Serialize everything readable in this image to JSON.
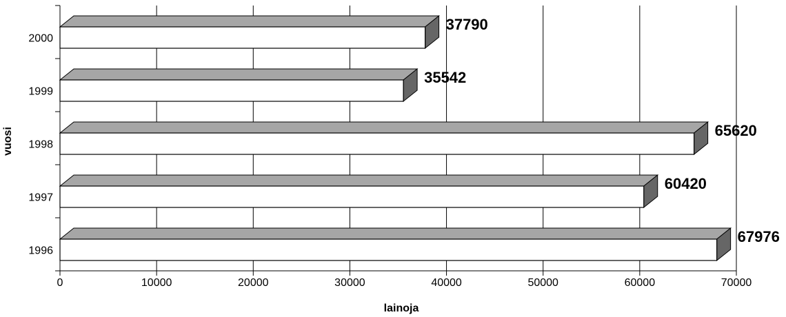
{
  "chart_data": {
    "type": "bar",
    "orientation": "horizontal",
    "style": "3d",
    "categories": [
      "1996",
      "1997",
      "1998",
      "1999",
      "2000"
    ],
    "values": [
      67976,
      60420,
      65620,
      35542,
      37790
    ],
    "data_labels": [
      "67976",
      "60420",
      "65620",
      "35542",
      "37790"
    ],
    "title": "",
    "xlabel": "lainoja",
    "ylabel": "vuosi",
    "xlim": [
      0,
      70000
    ],
    "x_ticks": [
      "0",
      "10000",
      "20000",
      "30000",
      "40000",
      "50000",
      "60000",
      "70000"
    ],
    "grid": "vertical",
    "legend": "none",
    "colors": {
      "bar_front": "#ffffff",
      "bar_top": "#a6a6a6",
      "bar_side": "#666666",
      "outline": "#000000",
      "grid": "#000000"
    }
  }
}
